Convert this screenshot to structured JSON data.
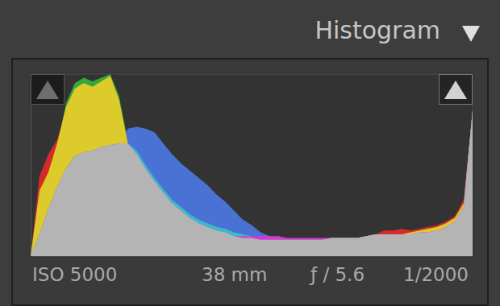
{
  "chart_data": {
    "type": "area",
    "title": "Histogram",
    "annotations": [
      "ISO 5000",
      "38 mm",
      "ƒ / 5.6",
      "1/2000"
    ],
    "x": [
      0,
      2,
      4,
      6,
      8,
      10,
      12,
      14,
      16,
      18,
      20,
      22,
      24,
      26,
      28,
      30,
      32,
      34,
      36,
      38,
      40,
      42,
      44,
      46,
      48,
      50,
      52,
      54,
      56,
      58,
      60,
      62,
      64,
      66,
      68,
      70,
      72,
      74,
      76,
      78,
      80,
      82,
      84,
      86,
      88,
      90,
      92,
      94,
      96,
      98,
      100
    ],
    "xlim": [
      0,
      100
    ],
    "ylim": [
      0,
      100
    ],
    "grid": false,
    "tick_labels": false,
    "series": [
      {
        "color": "#d42a2a",
        "values": [
          0,
          44,
          56,
          64,
          80,
          90,
          94,
          92,
          95,
          97,
          84,
          62,
          56,
          48,
          41,
          35,
          29,
          25,
          21,
          18,
          16,
          14,
          13,
          11,
          10,
          10,
          9,
          9,
          9,
          9,
          9,
          9,
          9,
          9,
          10,
          10,
          10,
          10,
          11,
          12,
          14,
          14,
          15,
          14,
          15,
          16,
          17,
          19,
          22,
          31,
          80
        ]
      },
      {
        "color": "#36a83a",
        "values": [
          0,
          34,
          44,
          60,
          84,
          95,
          98,
          96,
          98,
          100,
          88,
          63,
          56,
          48,
          41,
          35,
          29,
          25,
          21,
          18,
          16,
          14,
          13,
          11,
          10,
          10,
          9,
          9,
          9,
          9,
          9,
          9,
          9,
          9,
          10,
          10,
          10,
          10,
          11,
          12,
          12,
          12,
          12,
          12,
          13,
          13,
          14,
          16,
          19,
          27,
          80
        ]
      },
      {
        "color": "#4a72d4",
        "values": [
          0,
          12,
          26,
          38,
          48,
          55,
          57,
          58,
          60,
          61,
          62,
          70,
          71,
          70,
          68,
          62,
          56,
          51,
          47,
          43,
          39,
          34,
          30,
          25,
          20,
          17,
          13,
          11,
          10,
          9,
          9,
          9,
          9,
          9,
          10,
          10,
          10,
          10,
          11,
          12,
          12,
          12,
          12,
          12,
          13,
          13,
          14,
          16,
          19,
          27,
          80
        ]
      },
      {
        "color": "#dccb2a",
        "values": [
          0,
          36,
          46,
          62,
          82,
          92,
          95,
          93,
          96,
          99,
          86,
          62,
          56,
          48,
          41,
          35,
          29,
          25,
          21,
          18,
          16,
          14,
          13,
          11,
          10,
          10,
          9,
          9,
          9,
          9,
          9,
          9,
          9,
          9,
          10,
          10,
          10,
          10,
          11,
          12,
          12,
          12,
          12,
          13,
          14,
          15,
          16,
          18,
          21,
          29,
          80
        ]
      },
      {
        "color": "#36bccb",
        "values": [
          0,
          12,
          26,
          38,
          48,
          55,
          57,
          58,
          60,
          61,
          62,
          62,
          58,
          50,
          43,
          37,
          31,
          27,
          23,
          20,
          18,
          16,
          15,
          13,
          12,
          11,
          9,
          9,
          9,
          9,
          9,
          9,
          9,
          9,
          10,
          10,
          10,
          10,
          11,
          12,
          12,
          12,
          12,
          12,
          13,
          13,
          14,
          16,
          19,
          27,
          80
        ]
      },
      {
        "color": "#d23ad0",
        "values": [
          0,
          12,
          26,
          38,
          48,
          55,
          57,
          58,
          60,
          61,
          62,
          62,
          56,
          48,
          41,
          35,
          29,
          25,
          21,
          18,
          16,
          14,
          13,
          11,
          11,
          11,
          11,
          11,
          11,
          10,
          10,
          10,
          10,
          10,
          10,
          10,
          10,
          10,
          11,
          12,
          12,
          12,
          12,
          12,
          13,
          13,
          14,
          16,
          19,
          27,
          80
        ]
      },
      {
        "color": "#b4b4b4",
        "values": [
          0,
          12,
          26,
          38,
          48,
          55,
          57,
          58,
          60,
          61,
          62,
          62,
          56,
          48,
          41,
          35,
          29,
          25,
          21,
          18,
          16,
          14,
          13,
          11,
          10,
          10,
          9,
          9,
          9,
          9,
          9,
          9,
          9,
          9,
          10,
          10,
          10,
          10,
          11,
          12,
          12,
          12,
          12,
          12,
          13,
          13,
          14,
          16,
          19,
          27,
          80
        ]
      }
    ]
  }
}
